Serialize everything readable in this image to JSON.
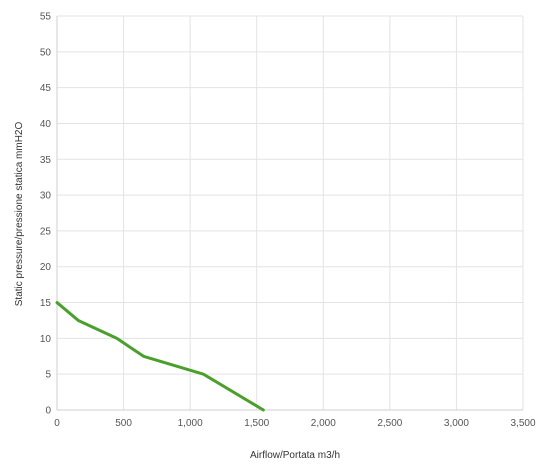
{
  "chart_data": {
    "type": "line",
    "xlabel": "Airflow/Portata m3/h",
    "ylabel": "Static pressure/pressione statica mmH2O",
    "xlim": [
      0,
      3500
    ],
    "ylim": [
      0,
      55
    ],
    "xticks": [
      0,
      500,
      1000,
      1500,
      2000,
      2500,
      3000,
      3500
    ],
    "xtick_labels": [
      "0",
      "500",
      "1,000",
      "1,500",
      "2,000",
      "2,500",
      "3,000",
      "3,500"
    ],
    "yticks": [
      0,
      5,
      10,
      15,
      20,
      25,
      30,
      35,
      40,
      45,
      50,
      55
    ],
    "ytick_labels": [
      "0",
      "5",
      "10",
      "15",
      "20",
      "25",
      "30",
      "35",
      "40",
      "45",
      "50",
      "55"
    ],
    "grid": true,
    "series": [
      {
        "color": "#4aa02c",
        "x": [
          0,
          160,
          450,
          650,
          1100,
          1550
        ],
        "y": [
          15,
          12.5,
          10,
          7.5,
          5,
          0
        ]
      }
    ]
  }
}
